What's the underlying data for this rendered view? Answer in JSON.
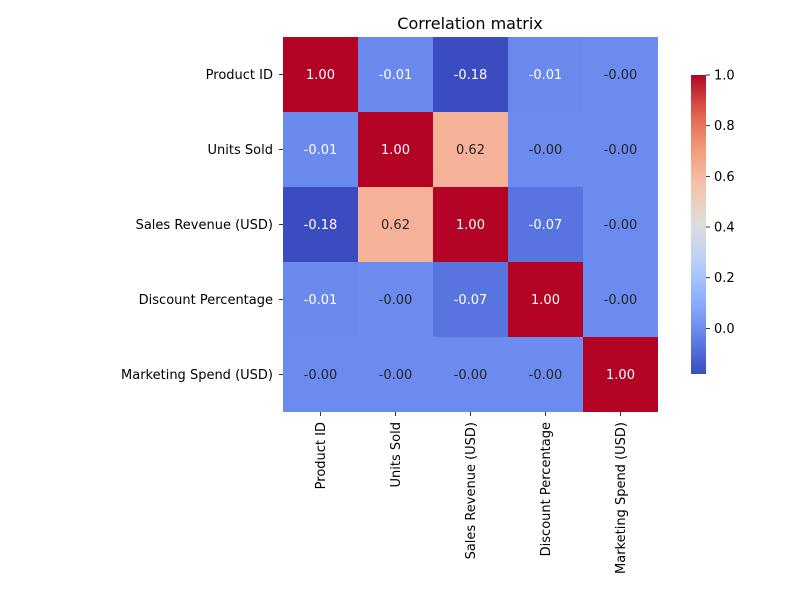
{
  "chart_data": {
    "type": "heatmap",
    "title": "Correlation matrix",
    "row_labels": [
      "Product ID",
      "Units Sold",
      "Sales Revenue (USD)",
      "Discount Percentage",
      "Marketing Spend (USD)"
    ],
    "col_labels": [
      "Product ID",
      "Units Sold",
      "Sales Revenue (USD)",
      "Discount Percentage",
      "Marketing Spend (USD)"
    ],
    "values": [
      [
        1.0,
        -0.01,
        -0.18,
        -0.01,
        -0.0
      ],
      [
        -0.01,
        1.0,
        0.62,
        -0.0,
        -0.0
      ],
      [
        -0.18,
        0.62,
        1.0,
        -0.07,
        -0.0
      ],
      [
        -0.01,
        -0.0,
        -0.07,
        1.0,
        -0.0
      ],
      [
        -0.0,
        -0.0,
        -0.0,
        -0.0,
        1.0
      ]
    ],
    "value_format": "0.00",
    "colormap": "coolwarm",
    "colorbar": {
      "range": [
        -0.18,
        1.0
      ],
      "ticks": [
        0.0,
        0.2,
        0.4,
        0.6,
        0.8,
        1.0
      ],
      "tick_labels": [
        "0.0",
        "0.2",
        "0.4",
        "0.6",
        "0.8",
        "1.0"
      ],
      "placement": "right"
    }
  }
}
